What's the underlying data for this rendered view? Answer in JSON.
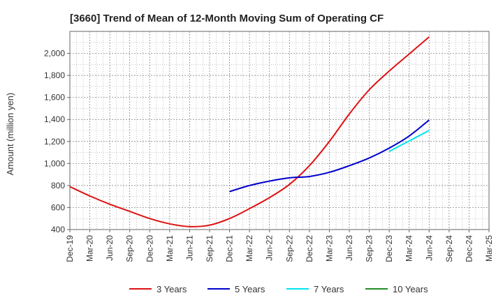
{
  "chart_data": {
    "type": "line",
    "title": "[3660]  Trend of Mean of 12-Month Moving Sum of Operating CF",
    "ylabel": "Amount (million yen)",
    "xlabel": "",
    "ylim": [
      400,
      2200
    ],
    "yticks": [
      400,
      600,
      800,
      1000,
      1200,
      1400,
      1600,
      1800,
      2000
    ],
    "ytick_labels": [
      "400",
      "600",
      "800",
      "1,000",
      "1,200",
      "1,400",
      "1,600",
      "1,800",
      "2,000"
    ],
    "categories": [
      "Dec-19",
      "Mar-20",
      "Jun-20",
      "Sep-20",
      "Dec-20",
      "Mar-21",
      "Jun-21",
      "Sep-21",
      "Dec-21",
      "Mar-22",
      "Jun-22",
      "Sep-22",
      "Dec-22",
      "Mar-23",
      "Jun-23",
      "Sep-23",
      "Dec-23",
      "Mar-24",
      "Jun-24",
      "Sep-24",
      "Dec-24",
      "Mar-25"
    ],
    "grid": true,
    "legend_position": "bottom",
    "series": [
      {
        "name": "3 Years",
        "color": "#dd1111",
        "points": [
          [
            0,
            790
          ],
          [
            1,
            705
          ],
          [
            2,
            630
          ],
          [
            3,
            565
          ],
          [
            4,
            500
          ],
          [
            5,
            452
          ],
          [
            6,
            427
          ],
          [
            7,
            440
          ],
          [
            8,
            500
          ],
          [
            9,
            590
          ],
          [
            10,
            690
          ],
          [
            11,
            810
          ],
          [
            12,
            980
          ],
          [
            13,
            1200
          ],
          [
            14,
            1450
          ],
          [
            15,
            1670
          ],
          [
            16,
            1840
          ],
          [
            17,
            1995
          ],
          [
            18,
            2150
          ]
        ]
      },
      {
        "name": "5 Years",
        "color": "#0000cc",
        "points": [
          [
            8,
            745
          ],
          [
            9,
            800
          ],
          [
            10,
            840
          ],
          [
            11,
            870
          ],
          [
            12,
            882
          ],
          [
            13,
            920
          ],
          [
            14,
            980
          ],
          [
            15,
            1050
          ],
          [
            16,
            1140
          ],
          [
            17,
            1250
          ],
          [
            18,
            1395
          ]
        ]
      },
      {
        "name": "7 Years",
        "color": "#00e5ee",
        "points": [
          [
            16,
            1110
          ],
          [
            17,
            1205
          ],
          [
            18,
            1300
          ]
        ]
      },
      {
        "name": "10 Years",
        "color": "#228b22",
        "points": []
      }
    ]
  }
}
